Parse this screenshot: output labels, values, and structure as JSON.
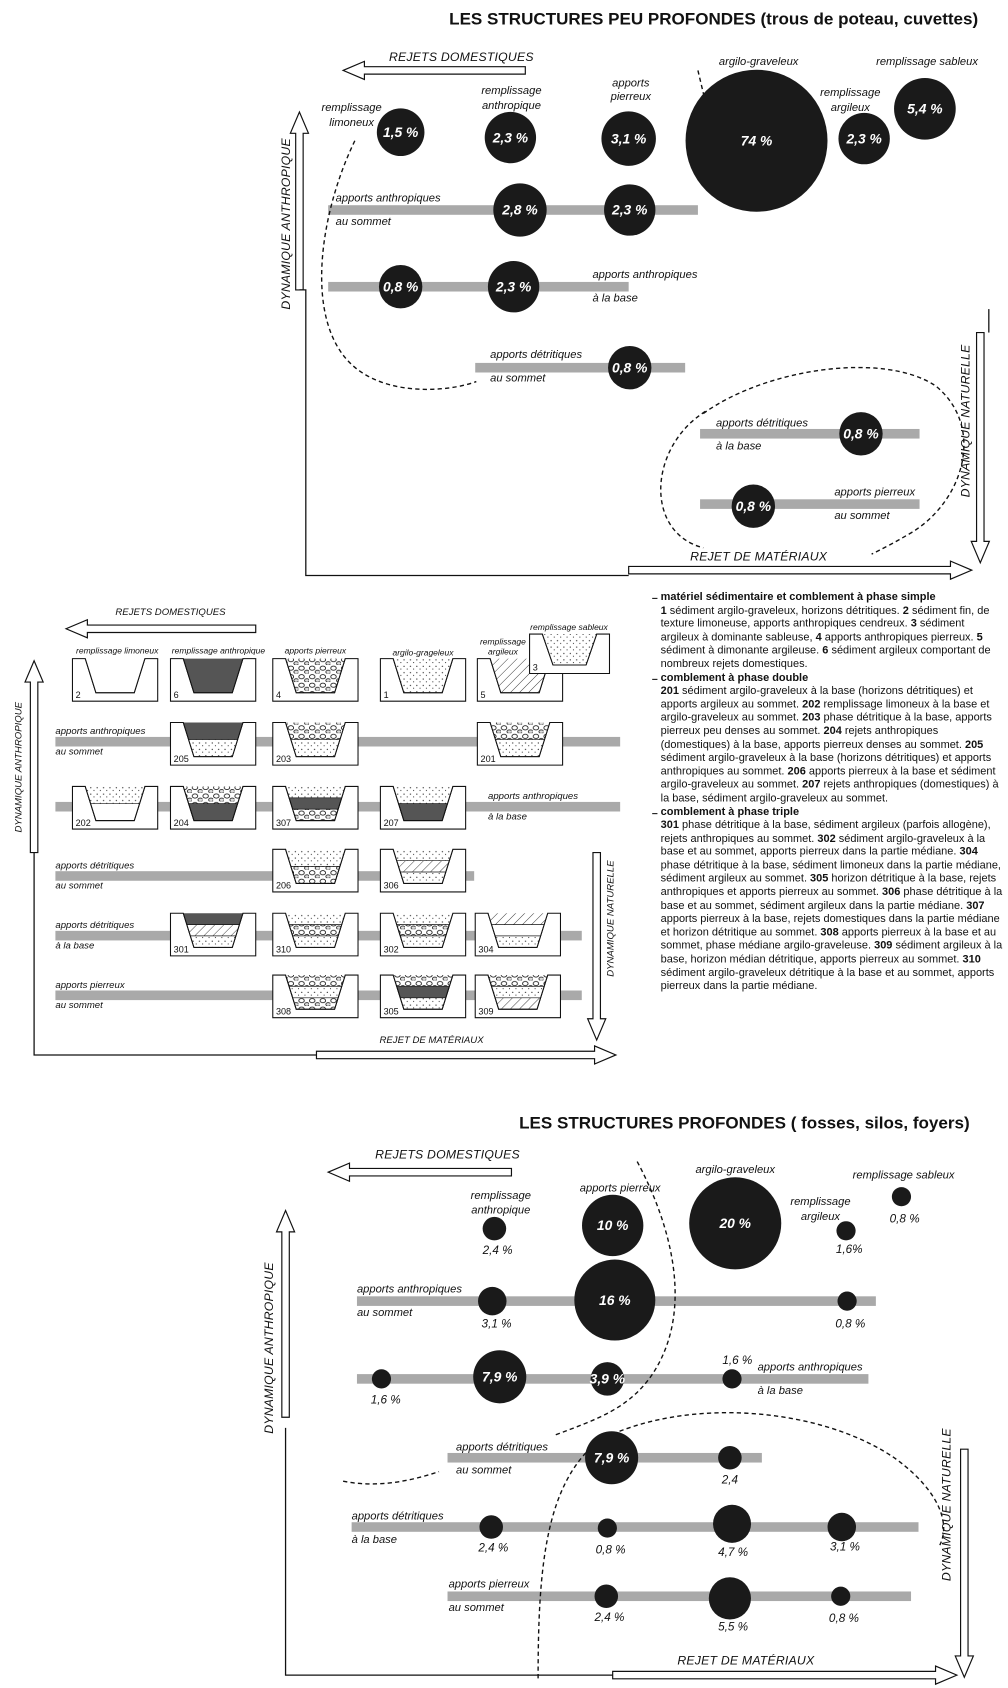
{
  "top": {
    "title": "LES STRUCTURES PEU PROFONDES (trous de poteau, cuvettes)",
    "axis_labels": [
      "REJETS DOMESTIQUES",
      "DYNAMIQUE ANTHROPIQUE",
      "DYNAMIQUE NATURELLE",
      "REJET DE MATÉRIAUX"
    ],
    "labels": [
      [
        "remplissage",
        "limoneux"
      ],
      [
        "remplissage",
        "anthropique"
      ],
      [
        "apports",
        "pierreux"
      ],
      [
        "argilo-graveleux"
      ],
      [
        "remplissage sableux"
      ],
      [
        "remplissage",
        "argileux"
      ],
      [
        "apports anthropiques",
        "au sommet"
      ],
      [
        "apports anthropiques",
        "à la base"
      ],
      [
        "apports détritiques",
        "au sommet"
      ],
      [
        "apports détritiques",
        "à la base"
      ],
      [
        "apports pierreux",
        "au sommet"
      ]
    ],
    "bubbles": [
      {
        "value": 1.5,
        "label": "1,5 %"
      },
      {
        "value": 2.3,
        "label": "2,3 %"
      },
      {
        "value": 3.1,
        "label": "3,1 %"
      },
      {
        "value": 74,
        "label": "74 %"
      },
      {
        "value": 2.3,
        "label": "2,3 %"
      },
      {
        "value": 5.4,
        "label": "5,4 %"
      },
      {
        "value": 2.8,
        "label": "2,8 %"
      },
      {
        "value": 2.3,
        "label": "2,3 %"
      },
      {
        "value": 0.8,
        "label": "0,8 %"
      },
      {
        "value": 2.3,
        "label": "2,3 %"
      },
      {
        "value": 0.8,
        "label": "0,8 %"
      },
      {
        "value": 0.8,
        "label": "0,8 %"
      },
      {
        "value": 0.8,
        "label": "0,8 %"
      }
    ]
  },
  "middle": {
    "axis_labels": [
      "REJETS DOMESTIQUES",
      "DYNAMIQUE ANTHROPIQUE",
      "DYNAMIQUE NATURELLE",
      "REJET DE MATÉRIAUX"
    ],
    "column_labels": [
      [
        "remplissage limoneux"
      ],
      [
        "remplissage anthropique"
      ],
      [
        "apports pierreux"
      ],
      [
        "argilo-grageleux"
      ],
      [
        "remplissage",
        "argileux"
      ],
      [
        "remplissage sableux"
      ]
    ],
    "row_labels": [
      [
        "apports anthropiques",
        "au sommet"
      ],
      [
        "apports anthropiques",
        "à la base"
      ],
      [
        "apports détritiques",
        "au sommet"
      ],
      [
        "apports détritiques",
        "à la base"
      ],
      [
        "apports pierreux",
        "au sommet"
      ]
    ],
    "icons": [
      "2",
      "6",
      "4",
      "1",
      "5",
      "3",
      "205",
      "203",
      "201",
      "202",
      "204",
      "307",
      "207",
      "206",
      "306",
      "301",
      "310",
      "302",
      "304",
      "308",
      "305",
      "309"
    ]
  },
  "legend": [
    {
      "heading": "matériel sédimentaire et comblement à phase simple",
      "items": [
        {
          "code": "1",
          "text": "sédiment argilo-graveleux, horizons détritiques."
        },
        {
          "code": "2",
          "text": "sédiment fin, de texture limoneuse, apports anthropiques cendreux."
        },
        {
          "code": "3",
          "text": "sédiment argileux à dominante sableuse,"
        },
        {
          "code": "4",
          "text": "apports anthropiques pierreux."
        },
        {
          "code": "5",
          "text": "sédiment à dimonante argileuse."
        },
        {
          "code": "6",
          "text": "sédiment argileux comportant de nombreux rejets domestiques."
        }
      ]
    },
    {
      "heading": "comblement à phase double",
      "items": [
        {
          "code": "201",
          "text": "sédiment argilo-graveleux à la base (horizons détritiques) et apports argileux au sommet."
        },
        {
          "code": "202",
          "text": "remplissage limoneux à la base et argilo-graveleux au sommet."
        },
        {
          "code": "203",
          "text": "phase détritique à la base, apports pierreux peu denses au sommet."
        },
        {
          "code": "204",
          "text": "rejets anthropiques (domestiques) à la base, apports pierreux denses au sommet."
        },
        {
          "code": "205",
          "text": "sédiment argilo-graveleux à la base (horizons détritiques) et apports anthropiques au sommet."
        },
        {
          "code": "206",
          "text": "apports pierreux à la base et sédiment argilo-graveleux au sommet."
        },
        {
          "code": "207",
          "text": "rejets anthropiques (domestiques) à la base, sédiment argilo-graveleux au sommet."
        }
      ]
    },
    {
      "heading": "comblement à phase triple",
      "items": [
        {
          "code": "301",
          "text": "phase détritique à la base, sédiment argileux (parfois allogène), rejets anthropiques au sommet."
        },
        {
          "code": "302",
          "text": "sédiment argilo-graveleux à la base et au sommet, apports pierreux dans la partie médiane."
        },
        {
          "code": "304",
          "text": "phase détritique à la base, sédiment limoneux dans la partie médiane, sédiment argileux au sommet."
        },
        {
          "code": "305",
          "text": "horizon détritique à la base, rejets anthropiques et apports pierreux au sommet."
        },
        {
          "code": "306",
          "text": "phase détritique à la base et au sommet, sédiment argileux dans la partie médiane."
        },
        {
          "code": "307",
          "text": "apports pierreux à la base, rejets domestiques dans la partie médiane et horizon détritique au sommet."
        },
        {
          "code": "308",
          "text": "apports pierreux à la base et au sommet, phase médiane argilo-graveleuse."
        },
        {
          "code": "309",
          "text": "sédiment argileux à la base, horizon médian détritique, apports pierreux au sommet."
        },
        {
          "code": "310",
          "text": "sédiment argilo-graveleux détritique à la base et au sommet, apports pierreux dans la partie médiane."
        }
      ]
    }
  ],
  "bottom": {
    "title": "LES STRUCTURES PROFONDES ( fosses, silos, foyers)",
    "axis_labels": [
      "REJETS DOMESTIQUES",
      "DYNAMIQUE ANTHROPIQUE",
      "DYNAMIQUE NATURELLE",
      "REJET DE MATÉRIAUX"
    ],
    "labels": [
      [
        "remplissage",
        "anthropique"
      ],
      [
        "apports pierreux"
      ],
      [
        "argilo-graveleux"
      ],
      [
        "remplissage sableux"
      ],
      [
        "remplissage",
        "argileux"
      ],
      [
        "apports anthropiques",
        "au sommet"
      ],
      [
        "apports anthropiques",
        "à la base"
      ],
      [
        "apports détritiques",
        "au sommet"
      ],
      [
        "apports détritiques",
        "à la base"
      ],
      [
        "apports pierreux",
        "au sommet"
      ]
    ],
    "bubbles": [
      {
        "value": 2.4,
        "label": "2,4 %"
      },
      {
        "value": 10,
        "label": "10 %"
      },
      {
        "value": 20,
        "label": "20 %"
      },
      {
        "value": 1.6,
        "label": "1,6%"
      },
      {
        "value": 0.8,
        "label": "0,8 %"
      },
      {
        "value": 3.1,
        "label": "3,1 %"
      },
      {
        "value": 16,
        "label": "16 %"
      },
      {
        "value": 0.8,
        "label": "0,8 %"
      },
      {
        "value": 1.6,
        "label": "1,6 %"
      },
      {
        "value": 7.9,
        "label": "7,9 %"
      },
      {
        "value": 3.9,
        "label": "3,9 %"
      },
      {
        "value": 1.6,
        "label": "1,6 %"
      },
      {
        "value": 7.9,
        "label": "7,9 %"
      },
      {
        "value": 2.4,
        "label": "2,4"
      },
      {
        "value": 2.4,
        "label": "2,4 %"
      },
      {
        "value": 0.8,
        "label": "0,8 %"
      },
      {
        "value": 4.7,
        "label": "4,7 %"
      },
      {
        "value": 3.1,
        "label": "3,1 %"
      },
      {
        "value": 2.4,
        "label": "2,4 %"
      },
      {
        "value": 5.5,
        "label": "5,5 %"
      },
      {
        "value": 0.8,
        "label": "0,8 %"
      }
    ]
  }
}
